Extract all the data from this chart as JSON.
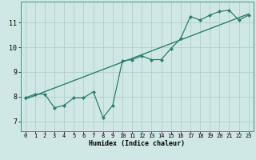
{
  "xlabel": "Humidex (Indice chaleur)",
  "ylabel": "",
  "bg_color": "#cfe8e5",
  "line_color": "#2e7d6e",
  "grid_color": "#aecfcc",
  "xlim": [
    -0.5,
    23.5
  ],
  "ylim": [
    6.6,
    11.85
  ],
  "xticks": [
    0,
    1,
    2,
    3,
    4,
    5,
    6,
    7,
    8,
    9,
    10,
    11,
    12,
    13,
    14,
    15,
    16,
    17,
    18,
    19,
    20,
    21,
    22,
    23
  ],
  "yticks": [
    7,
    8,
    9,
    10,
    11
  ],
  "data_x": [
    0,
    1,
    2,
    3,
    4,
    5,
    6,
    7,
    8,
    9,
    10,
    11,
    12,
    13,
    14,
    15,
    16,
    17,
    18,
    19,
    20,
    21,
    22,
    23
  ],
  "data_y": [
    7.95,
    8.1,
    8.1,
    7.55,
    7.65,
    7.95,
    7.95,
    8.2,
    7.15,
    7.65,
    9.45,
    9.5,
    9.65,
    9.5,
    9.5,
    9.95,
    10.35,
    11.25,
    11.1,
    11.3,
    11.45,
    11.5,
    11.1,
    11.3
  ],
  "trend_x": [
    0,
    23
  ],
  "trend_y": [
    7.9,
    11.35
  ],
  "xlabel_fontsize": 6.0,
  "xlabel_bold": true,
  "xtick_fontsize": 5.0,
  "ytick_fontsize": 6.0
}
